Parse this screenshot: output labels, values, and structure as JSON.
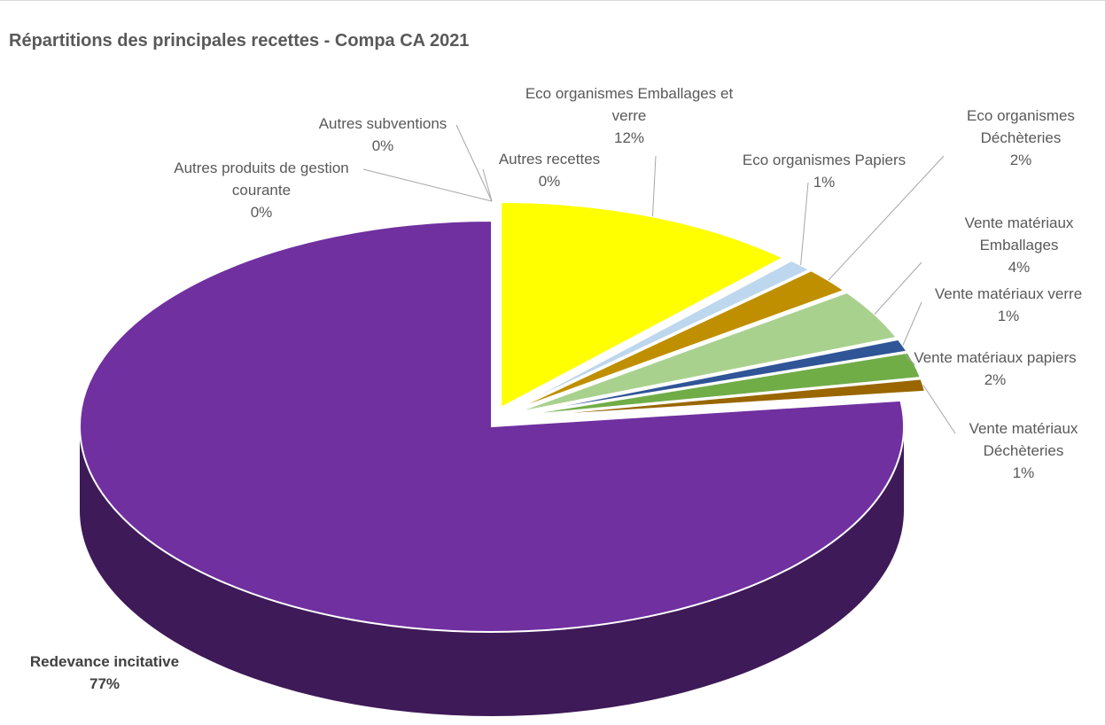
{
  "chart_data": {
    "type": "pie3d",
    "title": "Répartitions des principales recettes - Compa CA 2021",
    "categories": [
      "Eco organismes Emballages et verre",
      "Eco organismes Papiers",
      "Eco organismes Déchèteries",
      "Vente matériaux Emballages",
      "Vente matériaux verre",
      "Vente matériaux papiers",
      "Vente matériaux Déchèteries",
      "Redevance incitative",
      "Autres produits de gestion courante",
      "Autres subventions",
      "Autres recettes"
    ],
    "values": [
      12,
      1,
      2,
      4,
      1,
      2,
      1,
      77,
      0,
      0,
      0
    ],
    "value_labels": [
      "12%",
      "1%",
      "2%",
      "4%",
      "1%",
      "2%",
      "1%",
      "77%",
      "0%",
      "0%",
      "0%"
    ],
    "colors": [
      "#ffff00",
      "#bdd7ee",
      "#bf8f00",
      "#a9d18e",
      "#2f5597",
      "#70ad47",
      "#996600",
      "#7030a0",
      "#333f50",
      "#bf8f00",
      "#8faadc"
    ]
  }
}
